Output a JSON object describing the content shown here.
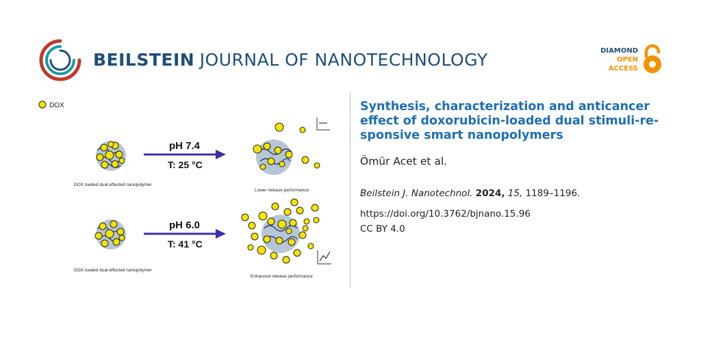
{
  "header": {
    "journal_bold": "BEILSTEIN",
    "journal_rest": "JOURNAL OF NANOTECHNOLOGY",
    "oa_line1": "DIAMOND",
    "oa_line2": "OPEN",
    "oa_line3": "ACCESS",
    "colors": {
      "brand_blue": "#1f4e79",
      "oa_orange": "#f39200",
      "logo_red": "#c0392b",
      "logo_teal": "#1a9aa0"
    }
  },
  "graphic": {
    "legend_label": "DOX",
    "top": {
      "ph": "pH 7.4",
      "temp": "T: 25 °C",
      "left_caption": "DOX loaded dual effected nanopolymer",
      "right_caption": "Lower release performance"
    },
    "bottom": {
      "ph": "pH 6.0",
      "temp": "T: 41 °C",
      "left_caption": "DOX loaded dual effected nanopolymer",
      "right_caption": "Enhanced release performance"
    },
    "colors": {
      "dox_yellow": "#f5e400",
      "arrow_blue": "#3a2fa8",
      "polymer_gray": "#b6c6d6"
    }
  },
  "article": {
    "title": "Synthesis, characterization and anticancer effect of doxorubicin-loaded dual stimuli-re-sponsive smart nanopolymers",
    "authors": "Ömür Acet et al.",
    "citation_journal": "Beilstein J. Nanotechnol.",
    "citation_year": "2024,",
    "citation_volume": "15,",
    "citation_pages": "1189–1196.",
    "doi": "https://doi.org/10.3762/bjnano.15.96",
    "license": "CC BY 4.0"
  }
}
